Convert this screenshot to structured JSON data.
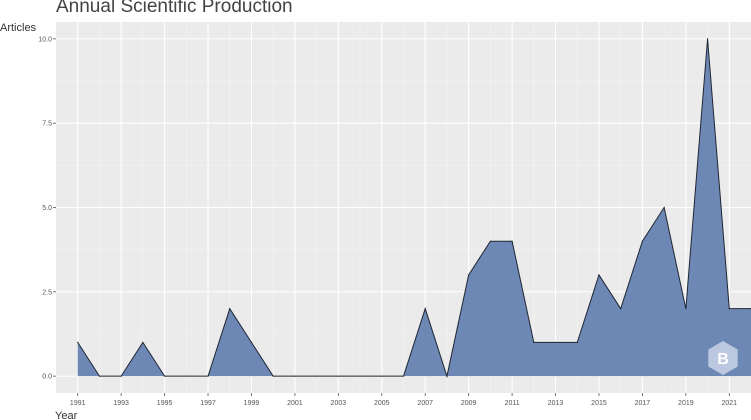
{
  "chart_data": {
    "type": "area",
    "title": "Annual Scientific Production",
    "xlabel": "Year",
    "ylabel": "Articles",
    "x": [
      1991,
      1992,
      1993,
      1994,
      1995,
      1996,
      1997,
      1998,
      1999,
      2000,
      2001,
      2002,
      2003,
      2004,
      2005,
      2006,
      2007,
      2008,
      2009,
      2010,
      2011,
      2012,
      2013,
      2014,
      2015,
      2016,
      2017,
      2018,
      2019,
      2020,
      2021,
      2022
    ],
    "values": [
      1,
      0,
      0,
      1,
      0,
      0,
      0,
      2,
      1,
      0,
      0,
      0,
      0,
      0,
      0,
      0,
      2,
      0,
      3,
      4,
      4,
      1,
      1,
      1,
      3,
      2,
      4,
      5,
      2,
      10,
      2,
      2
    ],
    "x_ticks": [
      1991,
      1993,
      1995,
      1997,
      1999,
      2001,
      2003,
      2005,
      2007,
      2009,
      2011,
      2013,
      2015,
      2017,
      2019,
      2021
    ],
    "y_ticks": [
      0,
      2.5,
      5,
      7.5,
      10
    ],
    "y_tick_labels": [
      "0.0",
      "2.5",
      "5.0",
      "7.5",
      "10.0"
    ],
    "xlim": [
      1990,
      2022
    ],
    "ylim": [
      -0.5,
      10.5
    ],
    "grid": true,
    "colors": {
      "fill": "#6e88b6",
      "line": "#1f2633",
      "panel": "#ebebeb",
      "grid_major": "#ffffff",
      "grid_minor": "#f4f4f4",
      "watermark": "#c9d4e8"
    },
    "watermark_icon": "bibliometrix-logo-icon"
  }
}
